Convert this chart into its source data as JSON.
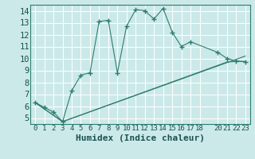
{
  "xlabel": "Humidex (Indice chaleur)",
  "bg_color": "#cce9e9",
  "grid_color": "#ffffff",
  "line_color": "#2e7d6e",
  "xlim": [
    -0.5,
    23.5
  ],
  "ylim": [
    4.5,
    14.5
  ],
  "xticks": [
    0,
    1,
    2,
    3,
    4,
    5,
    6,
    7,
    8,
    9,
    10,
    11,
    12,
    13,
    14,
    15,
    16,
    17,
    18,
    20,
    21,
    22,
    23
  ],
  "yticks": [
    5,
    6,
    7,
    8,
    9,
    10,
    11,
    12,
    13,
    14
  ],
  "line1_x": [
    0,
    1,
    2,
    3,
    4,
    5,
    6,
    7,
    8,
    9,
    10,
    11,
    12,
    13,
    14,
    15,
    16,
    17,
    20,
    21,
    22,
    23
  ],
  "line1_y": [
    6.3,
    5.9,
    5.5,
    4.7,
    7.3,
    8.6,
    8.8,
    13.1,
    13.2,
    8.8,
    12.7,
    14.1,
    14.0,
    13.3,
    14.2,
    12.2,
    11.0,
    11.4,
    10.5,
    10.0,
    9.8,
    9.7
  ],
  "line2_x": [
    0,
    3,
    23
  ],
  "line2_y": [
    6.3,
    4.7,
    10.2
  ],
  "line3_x": [
    0,
    3,
    21,
    22,
    23
  ],
  "line3_y": [
    6.3,
    4.7,
    9.7,
    9.75,
    9.75
  ],
  "font_family": "monospace",
  "xlabel_fontsize": 8,
  "tick_fontsize": 6.5,
  "ytick_fontsize": 7.5
}
